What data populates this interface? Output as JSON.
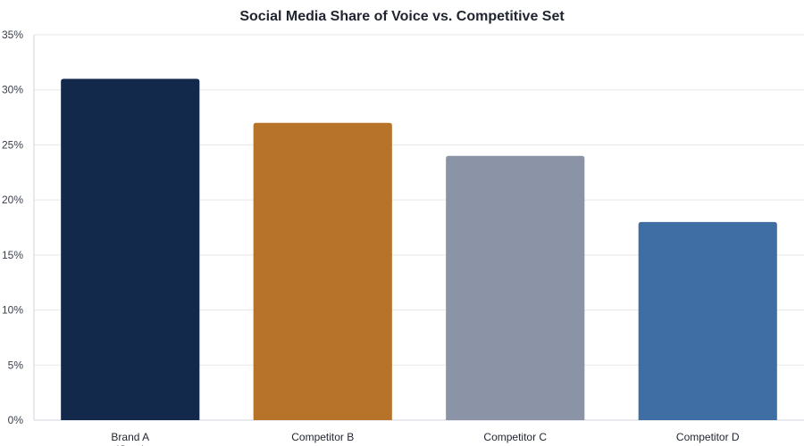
{
  "chart_data": {
    "type": "bar",
    "title": "Social Media Share of Voice vs. Competitive Set",
    "xlabel": "",
    "ylabel": "",
    "categories": [
      "Brand A (Ours)",
      "Competitor B",
      "Competitor C",
      "Competitor D"
    ],
    "category_display": [
      [
        "Brand A",
        "(Ours)"
      ],
      [
        "Competitor B"
      ],
      [
        "Competitor C"
      ],
      [
        "Competitor D"
      ]
    ],
    "values": [
      31,
      27,
      24,
      18
    ],
    "value_unit": "%",
    "colors": [
      "#13294b",
      "#b8732b",
      "#8b93a6",
      "#3f6ea5"
    ],
    "ylim": [
      0,
      35
    ],
    "yticks": [
      0,
      5,
      10,
      15,
      20,
      25,
      30,
      35
    ],
    "ytick_labels": [
      "0%",
      "5%",
      "10%",
      "15%",
      "20%",
      "25%",
      "30%",
      "35%"
    ],
    "grid": true,
    "legend": "none"
  }
}
